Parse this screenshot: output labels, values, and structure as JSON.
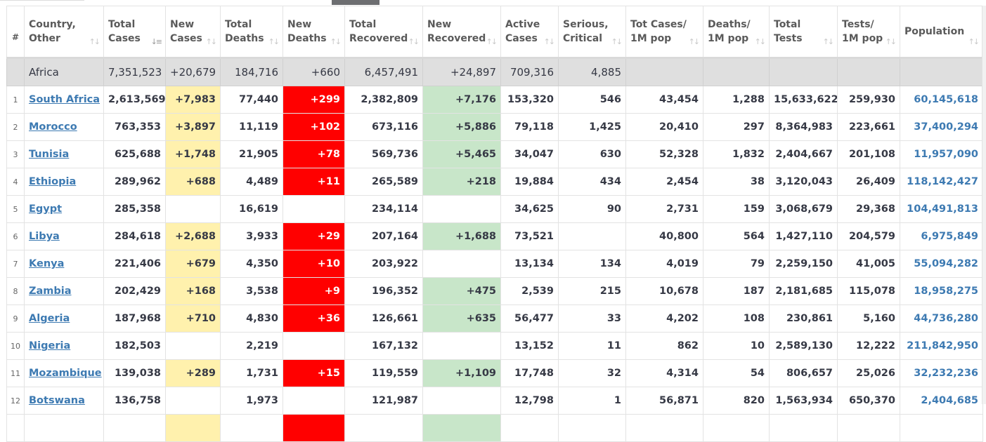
{
  "header": {
    "hash": "#",
    "country": "Country, Other",
    "total_cases": "Total Cases",
    "new_cases": "New Cases",
    "total_deaths": "Total Deaths",
    "new_deaths": "New Deaths",
    "total_recovered": "Total Recovered",
    "new_recovered": "New Recovered",
    "active_cases": "Active Cases",
    "serious": "Serious, Critical",
    "cases_per_m": "Tot Cases/ 1M pop",
    "deaths_per_m": "Deaths/ 1M pop",
    "total_tests": "Total Tests",
    "tests_per_m": "Tests/ 1M pop",
    "population": "Population"
  },
  "icons": {
    "sort": "sort-arrows-icon",
    "sort_active": "sort-descending-icon"
  },
  "colors": {
    "new_cases_bg": "#fff1ad",
    "new_deaths_bg": "#ff0000",
    "new_recovered_bg": "#c8e6c9",
    "link": "#3d7ab2"
  },
  "continent": {
    "name": "Africa",
    "total_cases": "7,351,523",
    "new_cases": "+20,679",
    "total_deaths": "184,716",
    "new_deaths": "+660",
    "total_recovered": "6,457,491",
    "new_recovered": "+24,897",
    "active_cases": "709,316",
    "serious": "4,885"
  },
  "rows": [
    {
      "rank": "1",
      "country": "South Africa",
      "total_cases": "2,613,569",
      "new_cases": "+7,983",
      "total_deaths": "77,440",
      "new_deaths": "+299",
      "total_recovered": "2,382,809",
      "new_recovered": "+7,176",
      "active_cases": "153,320",
      "serious": "546",
      "cases_per_m": "43,454",
      "deaths_per_m": "1,288",
      "total_tests": "15,633,622",
      "tests_per_m": "259,930",
      "population": "60,145,618"
    },
    {
      "rank": "2",
      "country": "Morocco",
      "total_cases": "763,353",
      "new_cases": "+3,897",
      "total_deaths": "11,119",
      "new_deaths": "+102",
      "total_recovered": "673,116",
      "new_recovered": "+5,886",
      "active_cases": "79,118",
      "serious": "1,425",
      "cases_per_m": "20,410",
      "deaths_per_m": "297",
      "total_tests": "8,364,983",
      "tests_per_m": "223,661",
      "population": "37,400,294"
    },
    {
      "rank": "3",
      "country": "Tunisia",
      "total_cases": "625,688",
      "new_cases": "+1,748",
      "total_deaths": "21,905",
      "new_deaths": "+78",
      "total_recovered": "569,736",
      "new_recovered": "+5,465",
      "active_cases": "34,047",
      "serious": "630",
      "cases_per_m": "52,328",
      "deaths_per_m": "1,832",
      "total_tests": "2,404,667",
      "tests_per_m": "201,108",
      "population": "11,957,090"
    },
    {
      "rank": "4",
      "country": "Ethiopia",
      "total_cases": "289,962",
      "new_cases": "+688",
      "total_deaths": "4,489",
      "new_deaths": "+11",
      "total_recovered": "265,589",
      "new_recovered": "+218",
      "active_cases": "19,884",
      "serious": "434",
      "cases_per_m": "2,454",
      "deaths_per_m": "38",
      "total_tests": "3,120,043",
      "tests_per_m": "26,409",
      "population": "118,142,427"
    },
    {
      "rank": "5",
      "country": "Egypt",
      "total_cases": "285,358",
      "new_cases": "",
      "total_deaths": "16,619",
      "new_deaths": "",
      "total_recovered": "234,114",
      "new_recovered": "",
      "active_cases": "34,625",
      "serious": "90",
      "cases_per_m": "2,731",
      "deaths_per_m": "159",
      "total_tests": "3,068,679",
      "tests_per_m": "29,368",
      "population": "104,491,813"
    },
    {
      "rank": "6",
      "country": "Libya",
      "total_cases": "284,618",
      "new_cases": "+2,688",
      "total_deaths": "3,933",
      "new_deaths": "+29",
      "total_recovered": "207,164",
      "new_recovered": "+1,688",
      "active_cases": "73,521",
      "serious": "",
      "cases_per_m": "40,800",
      "deaths_per_m": "564",
      "total_tests": "1,427,110",
      "tests_per_m": "204,579",
      "population": "6,975,849"
    },
    {
      "rank": "7",
      "country": "Kenya",
      "total_cases": "221,406",
      "new_cases": "+679",
      "total_deaths": "4,350",
      "new_deaths": "+10",
      "total_recovered": "203,922",
      "new_recovered": "",
      "active_cases": "13,134",
      "serious": "134",
      "cases_per_m": "4,019",
      "deaths_per_m": "79",
      "total_tests": "2,259,150",
      "tests_per_m": "41,005",
      "population": "55,094,282"
    },
    {
      "rank": "8",
      "country": "Zambia",
      "total_cases": "202,429",
      "new_cases": "+168",
      "total_deaths": "3,538",
      "new_deaths": "+9",
      "total_recovered": "196,352",
      "new_recovered": "+475",
      "active_cases": "2,539",
      "serious": "215",
      "cases_per_m": "10,678",
      "deaths_per_m": "187",
      "total_tests": "2,181,685",
      "tests_per_m": "115,078",
      "population": "18,958,275"
    },
    {
      "rank": "9",
      "country": "Algeria",
      "total_cases": "187,968",
      "new_cases": "+710",
      "total_deaths": "4,830",
      "new_deaths": "+36",
      "total_recovered": "126,661",
      "new_recovered": "+635",
      "active_cases": "56,477",
      "serious": "33",
      "cases_per_m": "4,202",
      "deaths_per_m": "108",
      "total_tests": "230,861",
      "tests_per_m": "5,160",
      "population": "44,736,280"
    },
    {
      "rank": "10",
      "country": "Nigeria",
      "total_cases": "182,503",
      "new_cases": "",
      "total_deaths": "2,219",
      "new_deaths": "",
      "total_recovered": "167,132",
      "new_recovered": "",
      "active_cases": "13,152",
      "serious": "11",
      "cases_per_m": "862",
      "deaths_per_m": "10",
      "total_tests": "2,589,130",
      "tests_per_m": "12,222",
      "population": "211,842,950"
    },
    {
      "rank": "11",
      "country": "Mozambique",
      "total_cases": "139,038",
      "new_cases": "+289",
      "total_deaths": "1,731",
      "new_deaths": "+15",
      "total_recovered": "119,559",
      "new_recovered": "+1,109",
      "active_cases": "17,748",
      "serious": "32",
      "cases_per_m": "4,314",
      "deaths_per_m": "54",
      "total_tests": "806,657",
      "tests_per_m": "25,026",
      "population": "32,232,236"
    },
    {
      "rank": "12",
      "country": "Botswana",
      "total_cases": "136,758",
      "new_cases": "",
      "total_deaths": "1,973",
      "new_deaths": "",
      "total_recovered": "121,987",
      "new_recovered": "",
      "active_cases": "12,798",
      "serious": "1",
      "cases_per_m": "56,871",
      "deaths_per_m": "820",
      "total_tests": "1,563,934",
      "tests_per_m": "650,370",
      "population": "2,404,685"
    }
  ]
}
